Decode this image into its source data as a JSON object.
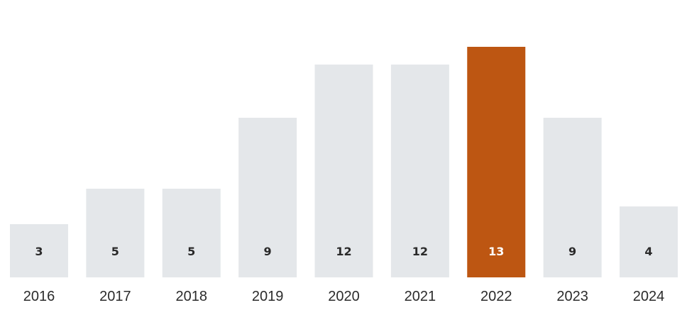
{
  "chart_data": {
    "type": "bar",
    "categories": [
      "2016",
      "2017",
      "2018",
      "2019",
      "2020",
      "2021",
      "2022",
      "2023",
      "2024"
    ],
    "values": [
      3,
      5,
      5,
      9,
      12,
      12,
      13,
      9,
      4
    ],
    "highlight_category": "2022",
    "title": "",
    "xlabel": "",
    "ylabel": "",
    "ylim": [
      0,
      15
    ],
    "grid": false,
    "data_labels": "inside-bottom",
    "colors": {
      "bar": "#e4e7ea",
      "highlight": "#bd5612",
      "label": "#2a2a2a",
      "highlight_label": "#ffffff"
    }
  }
}
